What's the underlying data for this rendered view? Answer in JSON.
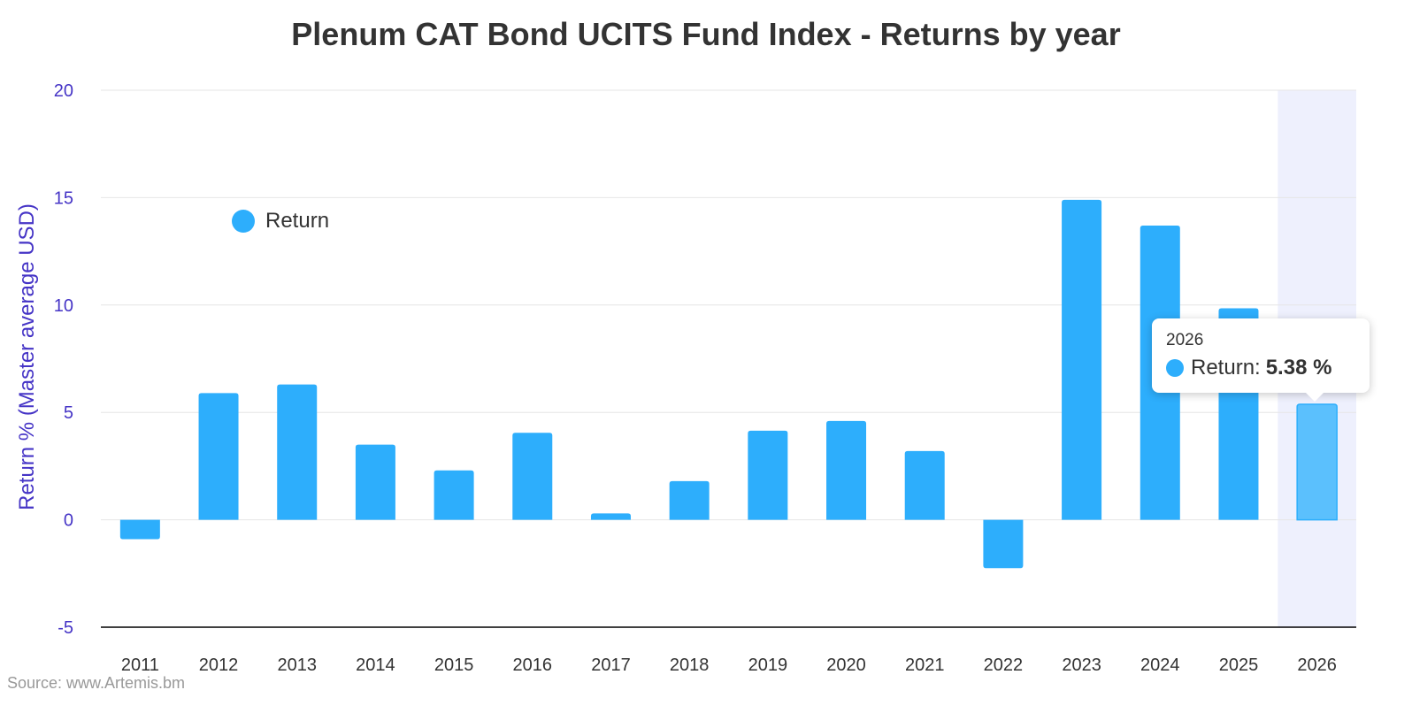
{
  "chart_data": {
    "type": "bar",
    "title": "Plenum CAT Bond UCITS Fund Index - Returns by year",
    "xlabel": "",
    "ylabel": "Return % (Master average USD)",
    "ylim": [
      -5,
      20
    ],
    "yticks": [
      "-5",
      "0",
      "5",
      "10",
      "15",
      "20"
    ],
    "grid": true,
    "legend": "top-left",
    "categories": [
      "2011",
      "2012",
      "2013",
      "2014",
      "2015",
      "2016",
      "2017",
      "2018",
      "2019",
      "2020",
      "2021",
      "2022",
      "2023",
      "2024",
      "2025",
      "2026"
    ],
    "series": [
      {
        "name": "Return",
        "values": [
          -0.9,
          5.9,
          6.3,
          3.5,
          2.3,
          4.05,
          0.3,
          1.8,
          4.15,
          4.6,
          3.2,
          -2.25,
          14.9,
          13.7,
          9.85,
          5.38
        ]
      }
    ],
    "highlighted_category": "2026",
    "colors": {
      "bar": "#2DAEFC",
      "bar_highlight": "#5BC0FD",
      "axis_text": "#4534C6",
      "highlight_band": "#EEF0FD",
      "gridline": "#E6E6E6",
      "baseline": "#000000"
    }
  },
  "legend": {
    "label": "Return"
  },
  "tooltip": {
    "year": "2026",
    "series_label": "Return:",
    "value": "5.38 %"
  },
  "source": "Source: www.Artemis.bm"
}
